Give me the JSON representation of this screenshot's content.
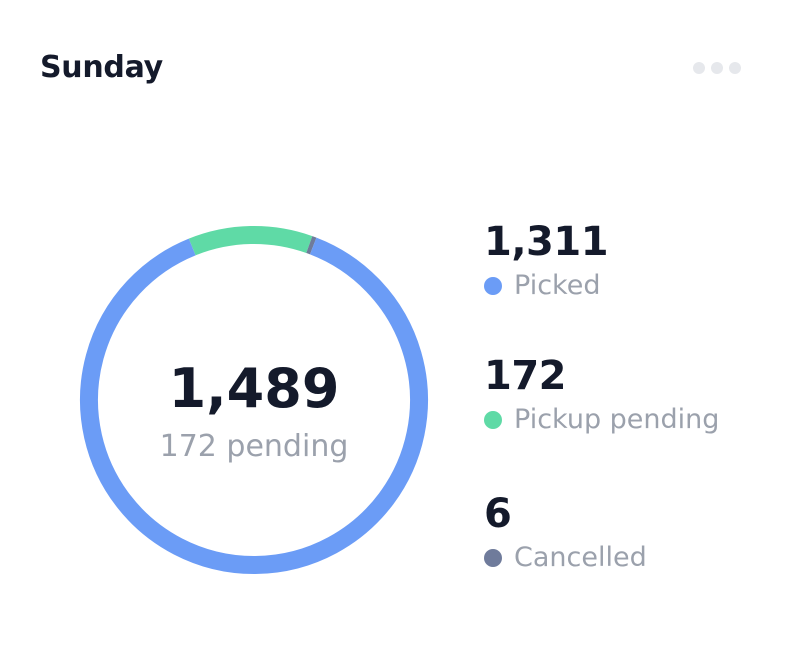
{
  "header": {
    "title": "Sunday",
    "menu_icon": "more-horizontal-icon"
  },
  "center": {
    "total": "1,489",
    "subtitle": "172 pending"
  },
  "legend": [
    {
      "value": "1,311",
      "label": "Picked",
      "color": "#6b9cf6"
    },
    {
      "value": "172",
      "label": "Pickup pending",
      "color": "#5fdaa6"
    },
    {
      "value": "6",
      "label": "Cancelled",
      "color": "#6f7b9b"
    }
  ],
  "chart_data": {
    "type": "pie",
    "donut": true,
    "title": "Sunday",
    "categories": [
      "Picked",
      "Pickup pending",
      "Cancelled"
    ],
    "values": [
      1311,
      172,
      6
    ],
    "colors": [
      "#6b9cf6",
      "#5fdaa6",
      "#6f7b9b"
    ],
    "total": 1489
  }
}
